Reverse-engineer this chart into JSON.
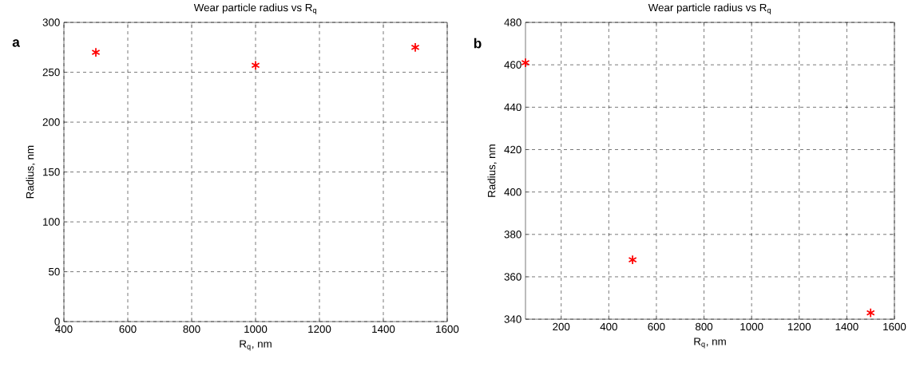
{
  "chart_data": [
    {
      "type": "scatter",
      "title": "Wear particle radius vs R$_{q}$",
      "xlabel": "R$_{q}$, nm",
      "ylabel": "Radius, nm",
      "annotations": [
        "a"
      ],
      "x": [
        500,
        1000,
        1500
      ],
      "values": [
        270,
        257,
        275
      ],
      "color": "#ff0000",
      "marker": "cross",
      "xlim": [
        400,
        1600
      ],
      "xticks": [
        400,
        600,
        800,
        1000,
        1200,
        1400,
        1600
      ],
      "ylim": [
        0,
        300
      ],
      "yticks": [
        0,
        50,
        100,
        150,
        200,
        250,
        300
      ],
      "grid": true
    },
    {
      "type": "scatter",
      "title": "Wear particle radius vs R$_{q}$",
      "xlabel": "R$_{q}$, nm",
      "ylabel": "Radius, nm",
      "annotations": [
        "b"
      ],
      "x": [
        50,
        500,
        1500
      ],
      "values": [
        461,
        368,
        343
      ],
      "color": "#ff0000",
      "marker": "cross",
      "xlim": [
        50,
        1600
      ],
      "xticks": [
        200,
        400,
        600,
        800,
        1000,
        1200,
        1400,
        1600
      ],
      "ylim": [
        340,
        480
      ],
      "yticks": [
        340,
        360,
        380,
        400,
        420,
        440,
        460,
        480
      ],
      "grid": true
    }
  ]
}
